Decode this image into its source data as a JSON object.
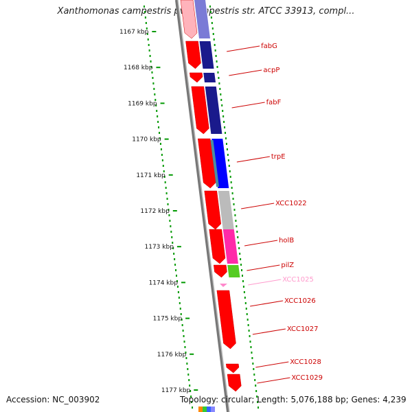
{
  "title": "Xanthomonas campestris pv. campestris str. ATCC 33913, compl...",
  "footer": {
    "accession": "Accession: NC_003902",
    "summary": "Topology: circular; Length: 5,076,188 bp; Genes: 4,239"
  },
  "kbp_labels": [
    "1167 kbp",
    "1168 kbp",
    "1169 kbp",
    "1170 kbp",
    "1171 kbp",
    "1172 kbp",
    "1173 kbp",
    "1174 kbp",
    "1175 kbp",
    "1176 kbp",
    "1177 kbp"
  ],
  "genes": [
    {
      "label": "fabG",
      "color": "#cc0000"
    },
    {
      "label": "acpP",
      "color": "#cc0000"
    },
    {
      "label": "fabF",
      "color": "#cc0000"
    },
    {
      "label": "trpE",
      "color": "#cc0000"
    },
    {
      "label": "XCC1022",
      "color": "#cc0000"
    },
    {
      "label": "holB",
      "color": "#cc0000"
    },
    {
      "label": "pilZ",
      "color": "#cc0000"
    },
    {
      "label": "XCC1025",
      "color": "#ff99cc"
    },
    {
      "label": "XCC1026",
      "color": "#cc0000"
    },
    {
      "label": "XCC1027",
      "color": "#cc0000"
    },
    {
      "label": "XCC1028",
      "color": "#cc0000"
    },
    {
      "label": "XCC1029",
      "color": "#cc0000"
    }
  ],
  "colors": {
    "cds": "#ff0000",
    "cds_pale": "#ffb3bb",
    "dot_track": "#009900",
    "backbone": "#888888",
    "cog_navy": "#1a1a8c",
    "cog_slate": "#7b7bd6",
    "cog_blue": "#0000ff",
    "cog_teal": "#4a8fa0",
    "cog_grey": "#bbbbbb",
    "cog_magenta": "#ff2aa8",
    "cog_green": "#55cc22",
    "cog_pink": "#ff88cc"
  }
}
